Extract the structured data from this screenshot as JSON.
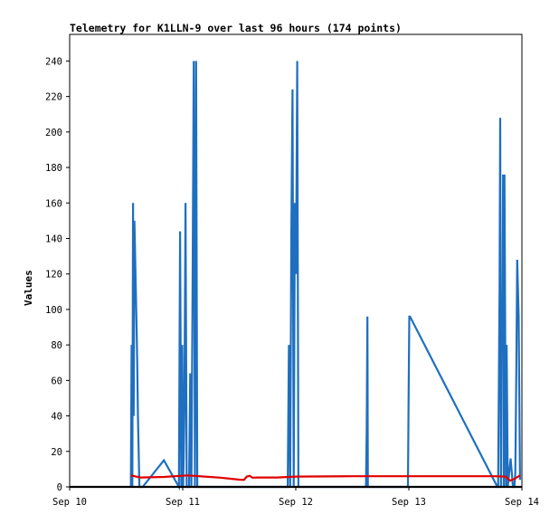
{
  "chart_data": {
    "type": "line",
    "title": "Telemetry for K1LLN-9 over last 96 hours (174 points)",
    "xlabel": "",
    "ylabel": "Values",
    "ylim": [
      0,
      255
    ],
    "xlim": [
      0,
      96
    ],
    "x_ticks": [
      {
        "x": 0,
        "label": "Sep 10"
      },
      {
        "x": 24,
        "label": "Sep 11"
      },
      {
        "x": 48,
        "label": "Sep 12"
      },
      {
        "x": 72,
        "label": "Sep 13"
      },
      {
        "x": 96,
        "label": "Sep 14"
      }
    ],
    "y_ticks": [
      0,
      20,
      40,
      60,
      80,
      100,
      120,
      140,
      160,
      180,
      200,
      220,
      240
    ],
    "grid": false,
    "colors": {
      "series1": "#1f6fc0",
      "series2": "#e00000",
      "series3": "#000000"
    },
    "series": [
      {
        "color": "#1f6fc0",
        "x": [
          13.0,
          13.15,
          13.3,
          13.45,
          13.6,
          13.75,
          13.9,
          14.05,
          14.2,
          14.35,
          14.5,
          14.65,
          14.8,
          14.9,
          15.5,
          20.0,
          23.2,
          23.45,
          23.7,
          23.9,
          24.1,
          24.35,
          24.6,
          24.85,
          25.1,
          25.35,
          25.6,
          25.85,
          26.1,
          26.35,
          26.6,
          26.85,
          27.1,
          27.35,
          27.6,
          46.3,
          46.55,
          46.8,
          47.05,
          47.3,
          47.55,
          47.8,
          48.05,
          48.3,
          48.55,
          48.8,
          49.05,
          62.7,
          62.9,
          63.05,
          63.2,
          63.3,
          71.8,
          71.95,
          72.1,
          72.25,
          90.8,
          90.95,
          91.1,
          91.25,
          91.4,
          91.55,
          91.7,
          91.85,
          92.0,
          92.15,
          92.3,
          92.45,
          92.6,
          92.75,
          93.0,
          93.6,
          94.1,
          94.4,
          94.6,
          94.8,
          95.0,
          95.3,
          95.6
        ],
        "values": [
          0,
          80,
          0,
          160,
          40,
          150,
          130,
          110,
          90,
          70,
          40,
          20,
          0,
          0,
          0,
          15,
          0,
          144,
          0,
          80,
          0,
          40,
          160,
          0,
          0,
          0,
          64,
          0,
          112,
          240,
          0,
          240,
          0,
          0,
          0,
          0,
          80,
          0,
          144,
          224,
          0,
          160,
          120,
          240,
          0,
          0,
          0,
          0,
          0,
          32,
          96,
          0,
          0,
          48,
          96,
          96,
          0,
          0,
          56,
          112,
          208,
          0,
          104,
          80,
          176,
          0,
          176,
          88,
          0,
          80,
          0,
          16,
          0,
          0,
          8,
          64,
          128,
          96,
          4
        ]
      },
      {
        "color": "#e00000",
        "x": [
          13.0,
          15.0,
          20.0,
          25.0,
          28.0,
          32.0,
          36.0,
          37.0,
          37.6,
          38.2,
          38.8,
          40.0,
          44.0,
          48.0,
          60.0,
          72.0,
          84.0,
          90.0,
          92.5,
          93.5,
          94.4,
          95.6
        ],
        "values": [
          6.5,
          5.3,
          5.6,
          6.5,
          5.9,
          5.2,
          4.1,
          4.0,
          5.8,
          6.2,
          5.2,
          5.3,
          5.3,
          5.8,
          6.0,
          6.0,
          6.0,
          6.0,
          5.8,
          3.5,
          4.5,
          6.5
        ]
      },
      {
        "color": "#000000",
        "x": [
          0,
          96
        ],
        "values": [
          0,
          0
        ]
      }
    ]
  }
}
